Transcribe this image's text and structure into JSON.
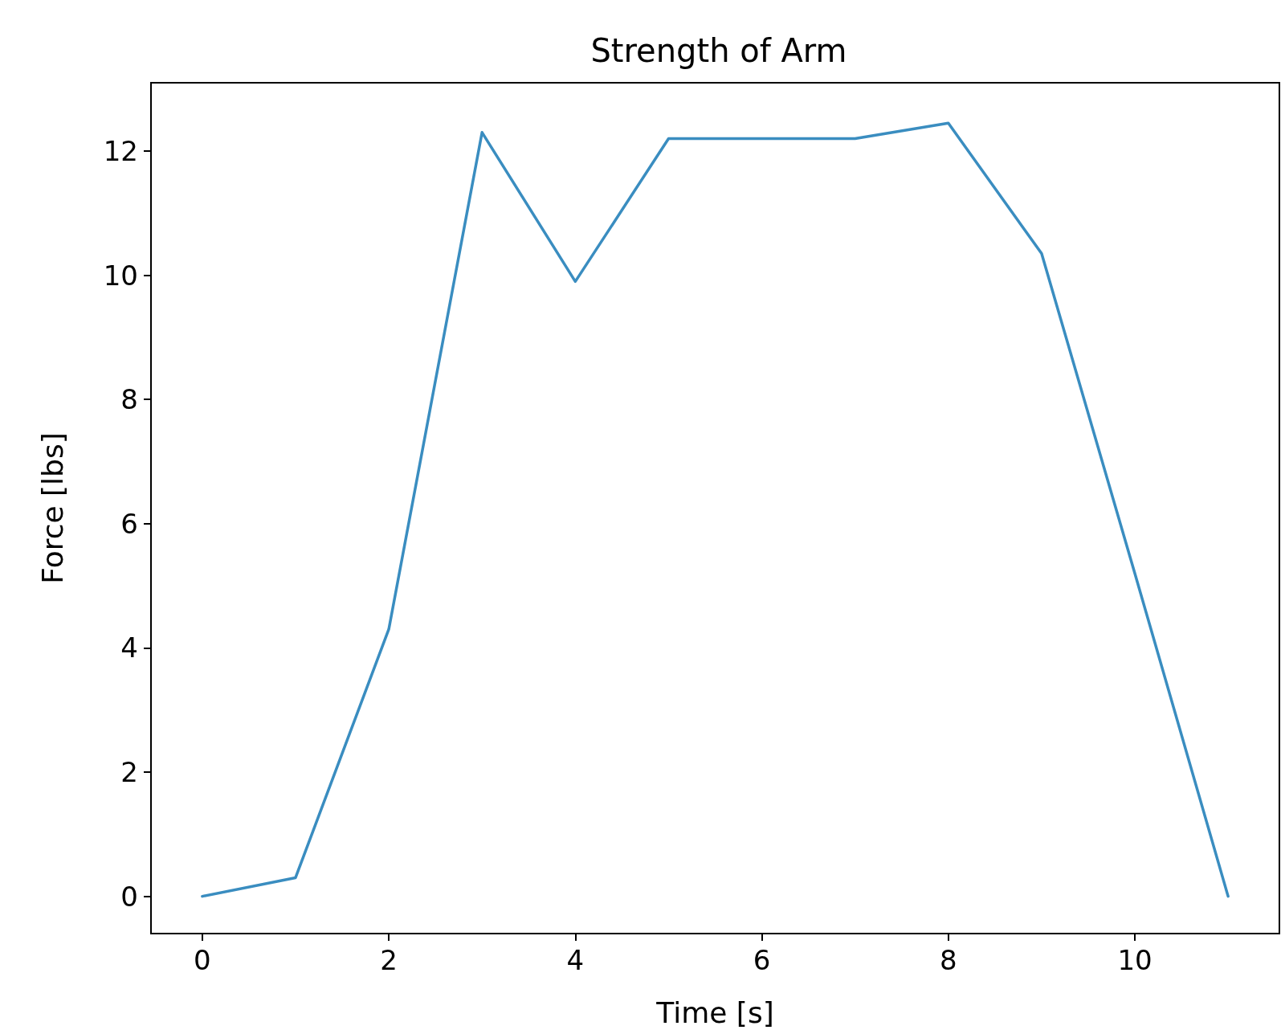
{
  "chart_data": {
    "type": "line",
    "title": "Strength of Arm",
    "xlabel": "Time [s]",
    "ylabel": "Force [lbs]",
    "x": [
      0,
      1,
      2,
      3,
      4,
      5,
      6,
      7,
      8,
      9,
      10,
      11
    ],
    "series": [
      {
        "color": "#3a8dc0",
        "values": [
          0,
          0.3,
          4.3,
          12.3,
          9.9,
          12.2,
          12.2,
          12.2,
          12.45,
          10.35,
          5.2,
          0
        ]
      }
    ],
    "xlim": [
      -0.55,
      11.55
    ],
    "ylim": [
      -0.6,
      13.1
    ],
    "xticks": [
      0,
      2,
      4,
      6,
      8,
      10
    ],
    "yticks": [
      0,
      2,
      4,
      6,
      8,
      10,
      12
    ],
    "grid": false,
    "marker": "none",
    "line_style": "solid"
  }
}
